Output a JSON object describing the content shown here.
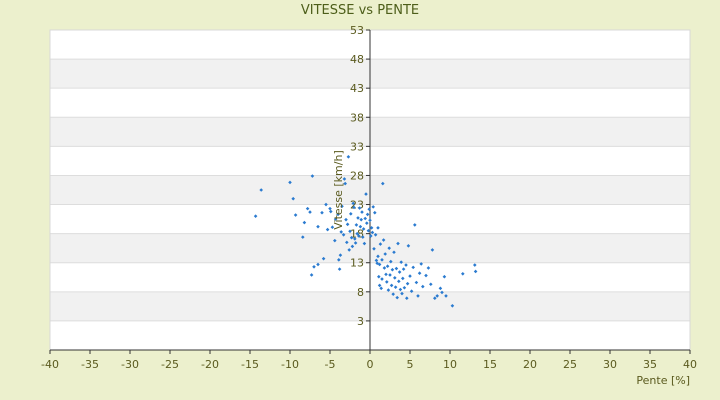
{
  "chart_data": {
    "type": "scatter",
    "title": "VITESSE vs PENTE",
    "xlabel": "Pente [%]",
    "ylabel": "Vitesse [km/h]",
    "xlim": [
      -40,
      40
    ],
    "ylim": [
      -2,
      53
    ],
    "xticks": [
      -40,
      -35,
      -30,
      -25,
      -20,
      -15,
      -10,
      -5,
      0,
      5,
      10,
      15,
      20,
      25,
      30,
      35,
      40
    ],
    "yticks": [
      3,
      8,
      13,
      18,
      23,
      28,
      33,
      38,
      43,
      48,
      53
    ],
    "grid": "horizontal alternating bands",
    "legend": "none",
    "colors": {
      "background": "#ecf0cd",
      "plot_band_light": "#ffffff",
      "plot_band_dark": "#f1f1f1",
      "gridline": "#dddddd",
      "axis": "#333333",
      "marker": "#2b7bd0",
      "text": "#5a5a1e"
    },
    "points": [
      [
        -14.3,
        21.0
      ],
      [
        -13.6,
        25.5
      ],
      [
        -10.0,
        26.8
      ],
      [
        -9.6,
        24.0
      ],
      [
        -9.3,
        21.2
      ],
      [
        -8.4,
        17.4
      ],
      [
        -8.2,
        19.9
      ],
      [
        -7.8,
        22.3
      ],
      [
        -7.5,
        21.7
      ],
      [
        -7.3,
        10.9
      ],
      [
        -7.2,
        27.9
      ],
      [
        -7.0,
        12.3
      ],
      [
        -6.5,
        12.7
      ],
      [
        -6.5,
        19.2
      ],
      [
        -6.0,
        21.6
      ],
      [
        -5.8,
        13.7
      ],
      [
        -5.5,
        23.0
      ],
      [
        -5.3,
        18.7
      ],
      [
        -5.0,
        22.3
      ],
      [
        -4.9,
        21.8
      ],
      [
        -4.7,
        19.1
      ],
      [
        -4.4,
        16.8
      ],
      [
        -4.3,
        20.5
      ],
      [
        -4.0,
        21.3
      ],
      [
        -3.9,
        13.5
      ],
      [
        -3.8,
        11.9
      ],
      [
        -3.7,
        14.3
      ],
      [
        -3.6,
        18.3
      ],
      [
        -3.5,
        22.7
      ],
      [
        -3.3,
        17.8
      ],
      [
        -3.2,
        27.4
      ],
      [
        -3.1,
        26.6
      ],
      [
        -3.0,
        20.4
      ],
      [
        -2.9,
        16.5
      ],
      [
        -2.8,
        19.6
      ],
      [
        -2.7,
        31.2
      ],
      [
        -2.6,
        15.2
      ],
      [
        -2.5,
        18.4
      ],
      [
        -2.4,
        21.4
      ],
      [
        -2.3,
        17.3
      ],
      [
        -2.2,
        15.8
      ],
      [
        -2.1,
        23.2
      ],
      [
        -2.0,
        22.5
      ],
      [
        -1.9,
        17.1
      ],
      [
        -1.8,
        16.4
      ],
      [
        -1.7,
        19.5
      ],
      [
        -1.6,
        18.0
      ],
      [
        -1.5,
        20.7
      ],
      [
        -1.4,
        17.6
      ],
      [
        -1.3,
        22.4
      ],
      [
        -1.2,
        19.2
      ],
      [
        -1.1,
        20.4
      ],
      [
        -1.0,
        21.7
      ],
      [
        -0.9,
        17.4
      ],
      [
        -0.8,
        18.8
      ],
      [
        -0.7,
        16.3
      ],
      [
        -0.6,
        20.6
      ],
      [
        -0.5,
        24.8
      ],
      [
        -0.4,
        19.8
      ],
      [
        -0.3,
        21.3
      ],
      [
        -0.2,
        18.5
      ],
      [
        -0.1,
        22.2
      ],
      [
        0.0,
        20.3
      ],
      [
        0.1,
        17.6
      ],
      [
        0.2,
        19.0
      ],
      [
        0.3,
        18.2
      ],
      [
        0.4,
        22.6
      ],
      [
        0.5,
        15.4
      ],
      [
        0.6,
        21.6
      ],
      [
        0.7,
        17.8
      ],
      [
        0.8,
        13.4
      ],
      [
        0.9,
        12.9
      ],
      [
        1.0,
        19.0
      ],
      [
        1.0,
        14.1
      ],
      [
        1.1,
        10.6
      ],
      [
        1.2,
        9.1
      ],
      [
        1.2,
        12.7
      ],
      [
        1.3,
        16.2
      ],
      [
        1.4,
        8.6
      ],
      [
        1.5,
        10.2
      ],
      [
        1.5,
        13.5
      ],
      [
        1.6,
        26.6
      ],
      [
        1.7,
        16.9
      ],
      [
        1.8,
        12.1
      ],
      [
        1.9,
        14.5
      ],
      [
        2.0,
        11.0
      ],
      [
        2.1,
        9.7
      ],
      [
        2.2,
        12.4
      ],
      [
        2.3,
        8.3
      ],
      [
        2.4,
        15.5
      ],
      [
        2.5,
        10.9
      ],
      [
        2.6,
        13.2
      ],
      [
        2.7,
        9.1
      ],
      [
        2.8,
        11.8
      ],
      [
        2.9,
        7.6
      ],
      [
        3.0,
        14.8
      ],
      [
        3.1,
        10.4
      ],
      [
        3.2,
        8.8
      ],
      [
        3.3,
        12.0
      ],
      [
        3.4,
        7.0
      ],
      [
        3.5,
        16.3
      ],
      [
        3.6,
        9.8
      ],
      [
        3.7,
        11.4
      ],
      [
        3.8,
        8.4
      ],
      [
        3.9,
        13.1
      ],
      [
        4.0,
        7.7
      ],
      [
        4.1,
        10.3
      ],
      [
        4.2,
        11.9
      ],
      [
        4.3,
        8.7
      ],
      [
        4.5,
        12.6
      ],
      [
        4.6,
        6.9
      ],
      [
        4.7,
        9.4
      ],
      [
        4.8,
        15.9
      ],
      [
        5.0,
        10.7
      ],
      [
        5.2,
        8.1
      ],
      [
        5.4,
        12.2
      ],
      [
        5.6,
        19.5
      ],
      [
        5.8,
        9.6
      ],
      [
        6.0,
        7.3
      ],
      [
        6.2,
        11.2
      ],
      [
        6.4,
        12.8
      ],
      [
        6.6,
        8.9
      ],
      [
        7.0,
        10.8
      ],
      [
        7.3,
        12.1
      ],
      [
        7.6,
        9.3
      ],
      [
        7.8,
        15.2
      ],
      [
        8.1,
        6.9
      ],
      [
        8.4,
        7.3
      ],
      [
        8.8,
        8.6
      ],
      [
        9.0,
        7.9
      ],
      [
        9.3,
        10.6
      ],
      [
        9.5,
        7.3
      ],
      [
        10.3,
        5.6
      ],
      [
        11.6,
        11.1
      ],
      [
        13.1,
        12.6
      ],
      [
        13.2,
        11.5
      ]
    ]
  }
}
